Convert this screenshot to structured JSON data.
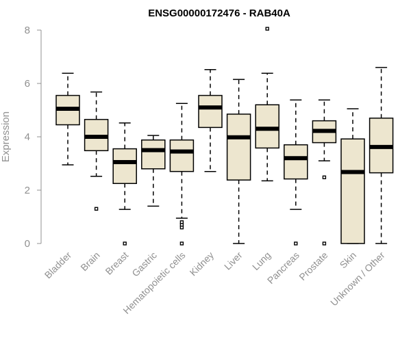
{
  "chart_data": {
    "type": "boxplot",
    "title": "ENSG00000172476 - RAB40A",
    "xlabel": "",
    "ylabel": "Expression",
    "ylim": [
      0,
      8
    ],
    "yticks": [
      0,
      2,
      4,
      6,
      8
    ],
    "categories": [
      "Bladder",
      "Brain",
      "Breast",
      "Gastric",
      "Hematopoietic cells",
      "Kidney",
      "Liver",
      "Lung",
      "Pancreas",
      "Prostate",
      "Skin",
      "Unknown / Other"
    ],
    "boxes": [
      {
        "name": "Bladder",
        "min": 2.95,
        "q1": 4.45,
        "median": 5.05,
        "q3": 5.55,
        "max": 6.38,
        "outliers": []
      },
      {
        "name": "Brain",
        "min": 2.52,
        "q1": 3.48,
        "median": 4.0,
        "q3": 4.65,
        "max": 5.68,
        "outliers": [
          1.3
        ]
      },
      {
        "name": "Breast",
        "min": 1.28,
        "q1": 2.25,
        "median": 3.05,
        "q3": 3.55,
        "max": 4.52,
        "outliers": [
          0.0
        ]
      },
      {
        "name": "Gastric",
        "min": 1.4,
        "q1": 2.8,
        "median": 3.5,
        "q3": 3.88,
        "max": 4.05,
        "outliers": []
      },
      {
        "name": "Hematopoietic cells",
        "min": 0.95,
        "q1": 2.7,
        "median": 3.45,
        "q3": 3.88,
        "max": 5.25,
        "outliers": [
          0.8,
          0.7,
          0.6,
          0.0
        ]
      },
      {
        "name": "Kidney",
        "min": 2.7,
        "q1": 4.35,
        "median": 5.1,
        "q3": 5.55,
        "max": 6.52,
        "outliers": []
      },
      {
        "name": "Liver",
        "min": 0.0,
        "q1": 2.38,
        "median": 3.98,
        "q3": 4.85,
        "max": 6.15,
        "outliers": []
      },
      {
        "name": "Lung",
        "min": 2.35,
        "q1": 3.58,
        "median": 4.3,
        "q3": 5.2,
        "max": 6.38,
        "outliers": [
          8.05
        ]
      },
      {
        "name": "Pancreas",
        "min": 1.28,
        "q1": 2.42,
        "median": 3.2,
        "q3": 3.7,
        "max": 5.38,
        "outliers": [
          0.0
        ]
      },
      {
        "name": "Prostate",
        "min": 3.1,
        "q1": 3.78,
        "median": 4.22,
        "q3": 4.6,
        "max": 5.38,
        "outliers": [
          2.48,
          0.0
        ]
      },
      {
        "name": "Skin",
        "min": 0.0,
        "q1": 0.0,
        "median": 2.68,
        "q3": 3.92,
        "max": 5.05,
        "outliers": []
      },
      {
        "name": "Unknown / Other",
        "min": 0.0,
        "q1": 2.65,
        "median": 3.62,
        "q3": 4.7,
        "max": 6.6,
        "outliers": []
      }
    ]
  }
}
